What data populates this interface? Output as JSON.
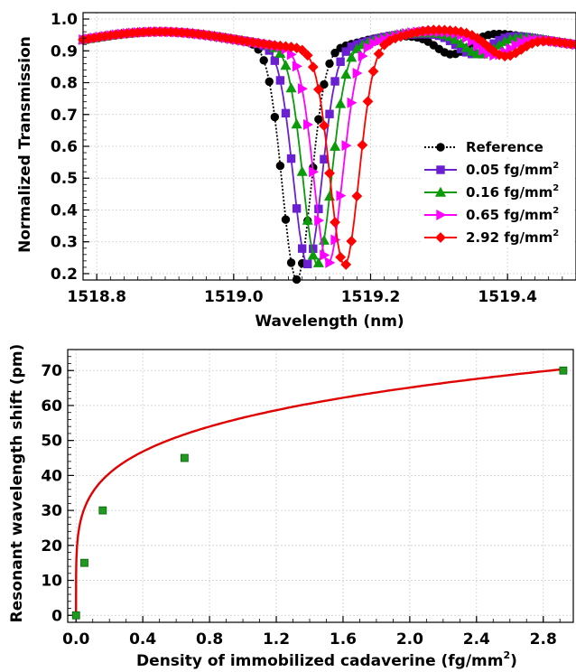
{
  "chart_data": [
    {
      "type": "line",
      "title": "",
      "xlabel": "Wavelength (nm)",
      "ylabel": "Normalized Transmission",
      "xlim": [
        1518.78,
        1519.5
      ],
      "ylim": [
        0.18,
        1.02
      ],
      "xticks": [
        "1518.8",
        "1519.0",
        "1519.2",
        "1519.4"
      ],
      "yticks": [
        "0.2",
        "0.3",
        "0.4",
        "0.5",
        "0.6",
        "0.7",
        "0.8",
        "0.9",
        "1.0"
      ],
      "grid": true,
      "legend_position": "right",
      "series": [
        {
          "name": "Reference",
          "unit": "fg/mm",
          "color": "#000000",
          "marker": "circle",
          "line": "dotted",
          "center": 1519.092,
          "min": 0.22,
          "peak2": 1519.32
        },
        {
          "name": "0.05",
          "unit": "fg/mm",
          "color": "#6a1fd1",
          "marker": "square",
          "line": "solid",
          "center": 1519.108,
          "min": 0.27,
          "peak2": 1519.35
        },
        {
          "name": "0.16",
          "unit": "fg/mm",
          "color": "#0a9a0a",
          "marker": "triangle",
          "line": "solid",
          "center": 1519.122,
          "min": 0.27,
          "peak2": 1519.36
        },
        {
          "name": "0.65",
          "unit": "fg/mm",
          "color": "#ff00ff",
          "marker": "triangle-right",
          "line": "solid",
          "center": 1519.138,
          "min": 0.27,
          "peak2": 1519.38
        },
        {
          "name": "2.92",
          "unit": "fg/mm",
          "color": "#ff0000",
          "marker": "diamond",
          "line": "solid",
          "center": 1519.162,
          "min": 0.26,
          "peak2": 1519.395
        }
      ]
    },
    {
      "type": "line",
      "title": "",
      "xlabel": "Density of immobilized cadaverine (fg/mm",
      "ylabel": "Resonant wavelength shift (pm)",
      "xlim": [
        -0.05,
        2.98
      ],
      "ylim": [
        -2,
        76
      ],
      "xticks": [
        "0.0",
        "0.4",
        "0.8",
        "1.2",
        "1.6",
        "2.0",
        "2.4",
        "2.8"
      ],
      "yticks": [
        "0",
        "10",
        "20",
        "30",
        "40",
        "50",
        "60",
        "70"
      ],
      "grid": true,
      "points": [
        {
          "x": 0,
          "y": 0
        },
        {
          "x": 0.05,
          "y": 15
        },
        {
          "x": 0.16,
          "y": 30
        },
        {
          "x": 0.65,
          "y": 45
        },
        {
          "x": 2.92,
          "y": 70
        }
      ],
      "marker_color": "#1e9a1e",
      "fit_color": "#e00000"
    }
  ]
}
